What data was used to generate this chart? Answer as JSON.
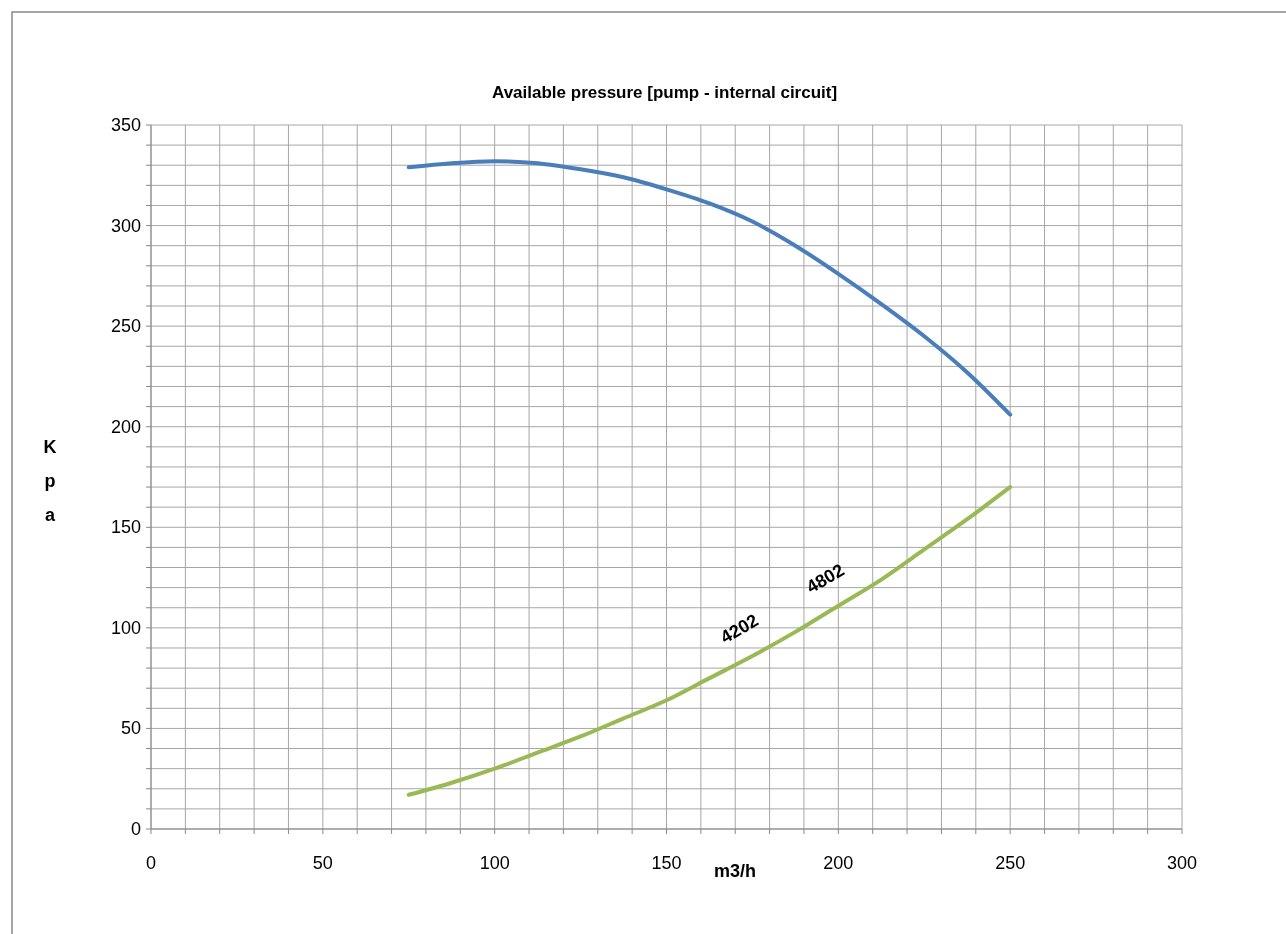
{
  "chart_data": {
    "type": "line",
    "title": "Available pressure  [pump -  internal circuit]",
    "xlabel": "m3/h",
    "ylabel": "Kpa",
    "xlim": [
      0,
      300
    ],
    "ylim": [
      0,
      350
    ],
    "xticks": [
      0,
      {
        "value": 10,
        "label": null
      },
      {
        "value": 20,
        "label": null
      },
      {
        "value": 30,
        "label": null
      },
      {
        "value": 40,
        "label": null
      },
      50,
      {
        "value": 60,
        "label": null
      },
      {
        "value": 70,
        "label": null
      },
      {
        "value": 80,
        "label": null
      },
      {
        "value": 90,
        "label": null
      },
      100,
      {
        "value": 110,
        "label": null
      },
      {
        "value": 120,
        "label": null
      },
      {
        "value": 130,
        "label": null
      },
      {
        "value": 140,
        "label": null
      },
      150,
      {
        "value": 160,
        "label": null
      },
      {
        "value": 170,
        "label": null
      },
      {
        "value": 180,
        "label": null
      },
      {
        "value": 190,
        "label": null
      },
      200,
      {
        "value": 210,
        "label": null
      },
      {
        "value": 220,
        "label": null
      },
      {
        "value": 230,
        "label": null
      },
      {
        "value": 240,
        "label": null
      },
      250,
      {
        "value": 260,
        "label": null
      },
      {
        "value": 270,
        "label": null
      },
      {
        "value": 280,
        "label": null
      },
      {
        "value": 290,
        "label": null
      },
      300
    ],
    "yticks": [
      0,
      {
        "value": 10,
        "label": null
      },
      {
        "value": 20,
        "label": null
      },
      {
        "value": 30,
        "label": null
      },
      {
        "value": 40,
        "label": null
      },
      50,
      {
        "value": 60,
        "label": null
      },
      {
        "value": 70,
        "label": null
      },
      {
        "value": 80,
        "label": null
      },
      {
        "value": 90,
        "label": null
      },
      100,
      {
        "value": 110,
        "label": null
      },
      {
        "value": 120,
        "label": null
      },
      {
        "value": 130,
        "label": null
      },
      {
        "value": 140,
        "label": null
      },
      150,
      {
        "value": 160,
        "label": null
      },
      {
        "value": 170,
        "label": null
      },
      {
        "value": 180,
        "label": null
      },
      {
        "value": 190,
        "label": null
      },
      200,
      {
        "value": 210,
        "label": null
      },
      {
        "value": 220,
        "label": null
      },
      {
        "value": 230,
        "label": null
      },
      {
        "value": 240,
        "label": null
      },
      250,
      {
        "value": 260,
        "label": null
      },
      {
        "value": 270,
        "label": null
      },
      {
        "value": 280,
        "label": null
      },
      {
        "value": 290,
        "label": null
      },
      300,
      {
        "value": 310,
        "label": null
      },
      {
        "value": 320,
        "label": null
      },
      {
        "value": 330,
        "label": null
      },
      {
        "value": 340,
        "label": null
      },
      350
    ],
    "grid": true,
    "line_style": "solid",
    "series": [
      {
        "color": "#4a7ebb",
        "x": [
          75,
          87.5,
          100,
          112.5,
          125,
          137.5,
          150,
          162.5,
          175,
          187.5,
          200,
          212.5,
          225,
          237.5,
          250
        ],
        "values": [
          329,
          331,
          332,
          331,
          328,
          324,
          318,
          311,
          302,
          290,
          276,
          261,
          245,
          227,
          206
        ]
      },
      {
        "color": "#98b954",
        "x": [
          75,
          87.5,
          100,
          112.5,
          125,
          137.5,
          150,
          162.5,
          175,
          187.5,
          200,
          212.5,
          225,
          237.5,
          250
        ],
        "values": [
          17,
          23,
          30,
          38,
          46,
          55,
          64,
          75,
          86,
          98,
          111,
          124,
          139,
          154,
          170
        ]
      }
    ],
    "annotations": [
      {
        "text": "4202",
        "x": 175,
        "y": 86
      },
      {
        "text": "4802",
        "x": 200,
        "y": 111
      }
    ]
  }
}
